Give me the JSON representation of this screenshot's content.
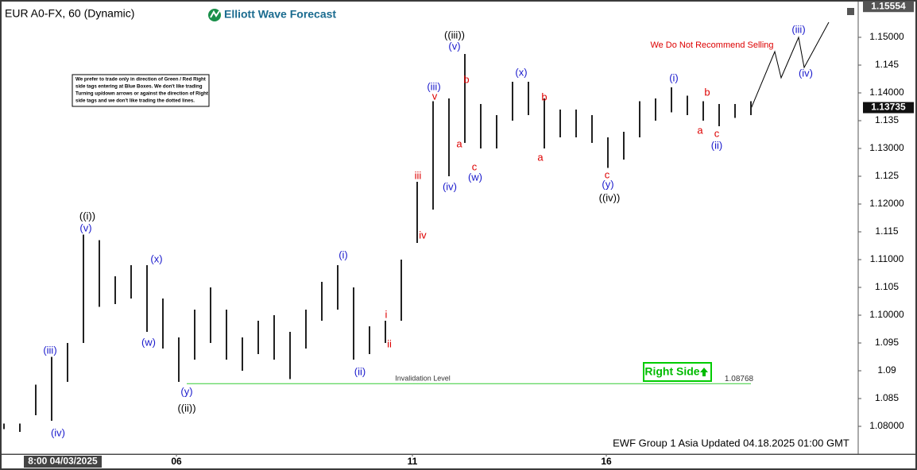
{
  "chart_data": {
    "type": "ohlc",
    "title": "EUR A0-FX, 60 (Dynamic)",
    "brand": "Elliott Wave Forecast",
    "footer": "EWF Group 1 Asia Updated 04.18.2025 01:00 GMT",
    "start_label": "8:00 04/03/2025",
    "high_price": 1.15554,
    "last_price": 1.13735,
    "warning": "We Do Not Recommend Selling",
    "right_side_tag": "Right Side",
    "invalidation_label": "Invalidation Level",
    "invalidation_level": 1.08768,
    "note_lines": [
      "We prefer to trade only in direction of Green / Red Right",
      "side tags entering at Blue Boxes. We don't like trading",
      "Turning up/down arrows or against the direction of Right",
      "side tags and we don't like trading the dotted lines."
    ],
    "color": "#222222",
    "x": [
      0,
      1,
      2,
      3,
      4,
      5,
      6,
      7,
      8,
      9,
      10,
      11,
      12,
      13,
      14,
      15,
      16,
      17,
      18,
      19,
      20,
      21,
      22,
      23,
      24,
      25,
      26,
      27,
      28,
      29,
      30,
      31,
      32,
      33,
      34,
      35,
      36,
      37,
      38,
      39,
      40,
      41,
      42,
      43,
      44,
      45,
      46,
      47
    ],
    "low": [
      1.0795,
      1.079,
      1.082,
      1.081,
      1.088,
      1.095,
      1.1015,
      1.102,
      1.103,
      1.097,
      1.094,
      1.088,
      1.092,
      1.095,
      1.092,
      1.09,
      1.093,
      1.092,
      1.0885,
      1.094,
      1.099,
      1.101,
      1.092,
      1.093,
      1.095,
      1.099,
      1.113,
      1.119,
      1.125,
      1.131,
      1.13,
      1.13,
      1.135,
      1.136,
      1.13,
      1.132,
      1.132,
      1.131,
      1.1265,
      1.128,
      1.132,
      1.135,
      1.1365,
      1.136,
      1.135,
      1.134,
      1.1355,
      1.136
    ],
    "high": [
      1.0805,
      1.0805,
      1.0875,
      1.0925,
      1.095,
      1.1145,
      1.1135,
      1.107,
      1.109,
      1.109,
      1.103,
      1.096,
      1.101,
      1.105,
      1.101,
      1.096,
      1.099,
      1.1,
      1.097,
      1.101,
      1.106,
      1.109,
      1.105,
      1.098,
      1.099,
      1.11,
      1.124,
      1.1385,
      1.139,
      1.147,
      1.138,
      1.136,
      1.142,
      1.142,
      1.139,
      1.137,
      1.137,
      1.136,
      1.132,
      1.133,
      1.1385,
      1.139,
      1.141,
      1.1395,
      1.1385,
      1.138,
      1.138,
      1.1385
    ],
    "xlim": [
      -0.25,
      53.75
    ],
    "ylim": [
      1.075,
      1.15557
    ],
    "xticks": [
      {
        "value": 10.85,
        "label": "06"
      },
      {
        "value": 25.7,
        "label": "11"
      },
      {
        "value": 37.9,
        "label": "16"
      }
    ],
    "yticks": [
      {
        "value": 1.08,
        "label": "1.08000"
      },
      1.085,
      1.09,
      1.095,
      {
        "value": 1.1,
        "label": "1.10000"
      },
      1.105,
      {
        "value": 1.11,
        "label": "1.11000"
      },
      1.115,
      {
        "value": 1.12,
        "label": "1.12000"
      },
      1.125,
      {
        "value": 1.13,
        "label": "1.13000"
      },
      1.135,
      {
        "value": 1.14,
        "label": "1.14000"
      },
      1.145,
      {
        "value": 1.15,
        "label": "1.15000"
      }
    ],
    "annotations": [
      {
        "text": "((i))",
        "color": "#000000"
      },
      {
        "text": "(v)",
        "color": "#1a1acc"
      },
      {
        "text": "(iii)",
        "color": "#1a1acc"
      },
      {
        "text": "(iv)",
        "color": "#1a1acc"
      },
      {
        "text": "(x)",
        "color": "#1a1acc"
      },
      {
        "text": "(w)",
        "color": "#1a1acc"
      },
      {
        "text": "(y)",
        "color": "#1a1acc"
      },
      {
        "text": "((ii))",
        "color": "#000000"
      },
      {
        "text": "(i)",
        "color": "#1a1acc"
      },
      {
        "text": "(ii)",
        "color": "#1a1acc"
      },
      {
        "text": "i",
        "color": "#dd0000"
      },
      {
        "text": "ii",
        "color": "#dd0000"
      },
      {
        "text": "iii",
        "color": "#dd0000"
      },
      {
        "text": "iv",
        "color": "#dd0000"
      },
      {
        "text": "v",
        "color": "#dd0000"
      },
      {
        "text": "(iii)",
        "color": "#1a1acc"
      },
      {
        "text": "((iii))",
        "color": "#000000"
      },
      {
        "text": "(v)",
        "color": "#1a1acc"
      },
      {
        "text": "(iv)",
        "color": "#1a1acc"
      },
      {
        "text": "a",
        "color": "#dd0000"
      },
      {
        "text": "b",
        "color": "#dd0000"
      },
      {
        "text": "c",
        "color": "#dd0000"
      },
      {
        "text": "(w)",
        "color": "#1a1acc"
      },
      {
        "text": "(x)",
        "color": "#1a1acc"
      },
      {
        "text": "b",
        "color": "#dd0000"
      },
      {
        "text": "a",
        "color": "#dd0000"
      },
      {
        "text": "c",
        "color": "#dd0000"
      },
      {
        "text": "(y)",
        "color": "#1a1acc"
      },
      {
        "text": "((iv))",
        "color": "#000000"
      },
      {
        "text": "(i)",
        "color": "#1a1acc"
      },
      {
        "text": "b",
        "color": "#dd0000"
      },
      {
        "text": "a",
        "color": "#dd0000"
      },
      {
        "text": "c",
        "color": "#dd0000"
      },
      {
        "text": "(ii)",
        "color": "#1a1acc"
      },
      {
        "text": "(iii)",
        "color": "#1a1acc"
      },
      {
        "text": "(iv)",
        "color": "#1a1acc"
      }
    ]
  }
}
